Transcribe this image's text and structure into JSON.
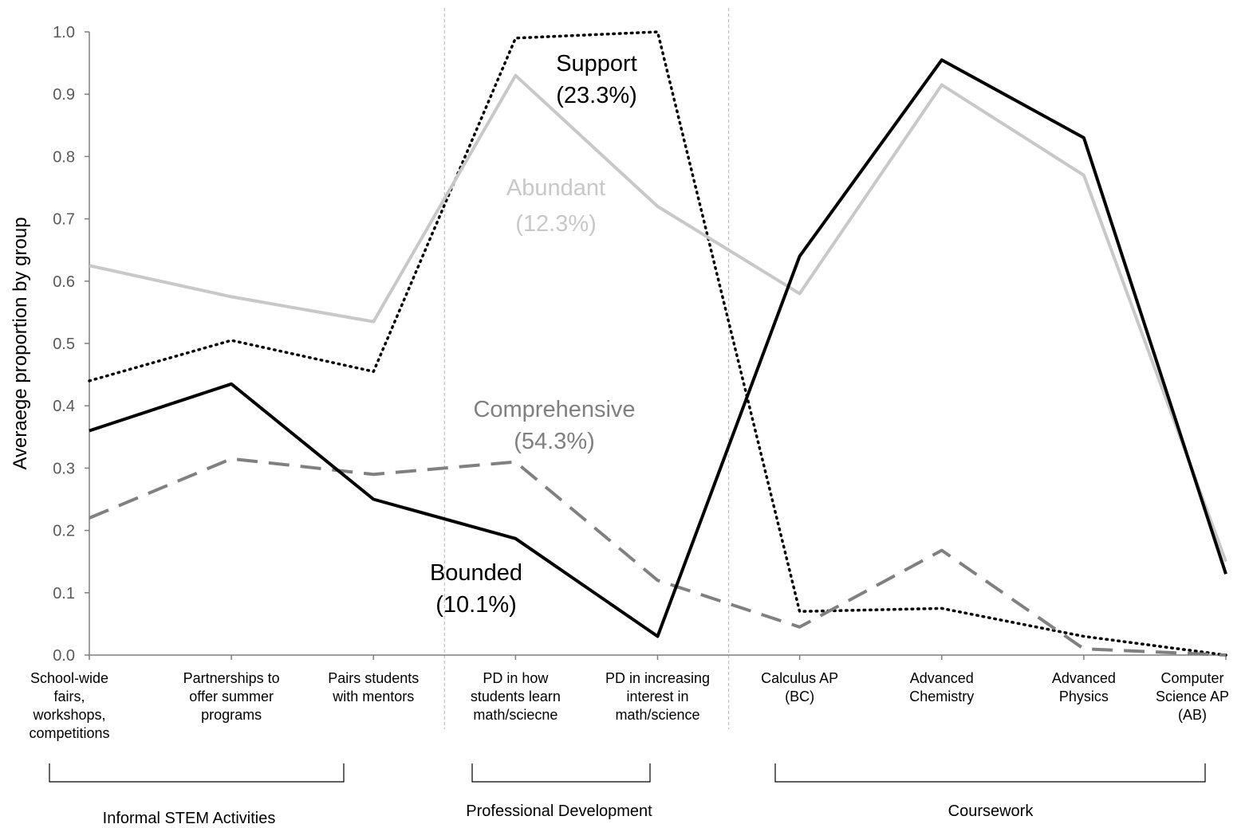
{
  "chart_data": {
    "type": "line",
    "ylabel": "Averaege proportion by group",
    "xlabel": "",
    "ylim": [
      0,
      1.0
    ],
    "yticks": [
      "0.0",
      "0.1",
      "0.2",
      "0.3",
      "0.4",
      "0.5",
      "0.6",
      "0.7",
      "0.8",
      "0.9",
      "1.0"
    ],
    "categories": [
      [
        "School-wide",
        "fairs,",
        "workshops,",
        "competitions"
      ],
      [
        "Partnerships to",
        "offer summer",
        "programs"
      ],
      [
        "Pairs students",
        "with mentors"
      ],
      [
        "PD in how",
        "students learn",
        "math/sciecne"
      ],
      [
        "PD in increasing",
        "interest in",
        "math/science"
      ],
      [
        "Calculus AP",
        "(BC)"
      ],
      [
        "Advanced",
        "Chemistry"
      ],
      [
        "Advanced",
        "Physics"
      ],
      [
        "Computer",
        "Science AP",
        "(AB)"
      ]
    ],
    "groups": [
      {
        "label": "Informal STEM Activities",
        "from": 0,
        "to": 2
      },
      {
        "label": "Professional Development",
        "from": 3,
        "to": 4
      },
      {
        "label": "Coursework",
        "from": 5,
        "to": 8
      }
    ],
    "series": [
      {
        "name": "Support",
        "pct": "(23.3%)",
        "style": "dotted",
        "color": "#000000",
        "values": [
          0.44,
          0.505,
          0.455,
          0.99,
          1.0,
          0.07,
          0.075,
          0.03,
          0.0
        ]
      },
      {
        "name": "Abundant",
        "pct": "(12.3%)",
        "style": "solid",
        "color": "#c8c8c8",
        "values": [
          0.625,
          0.575,
          0.535,
          0.93,
          0.72,
          0.58,
          0.915,
          0.77,
          0.15
        ]
      },
      {
        "name": "Comprehensive",
        "pct": "(54.3%)",
        "style": "dashed",
        "color": "#808080",
        "values": [
          0.22,
          0.315,
          0.29,
          0.31,
          0.12,
          0.045,
          0.168,
          0.01,
          0.0
        ]
      },
      {
        "name": "Bounded",
        "pct": "(10.1%)",
        "style": "solid",
        "color": "#000000",
        "values": [
          0.36,
          0.435,
          0.25,
          0.187,
          0.03,
          0.64,
          0.955,
          0.83,
          0.13
        ]
      }
    ]
  }
}
